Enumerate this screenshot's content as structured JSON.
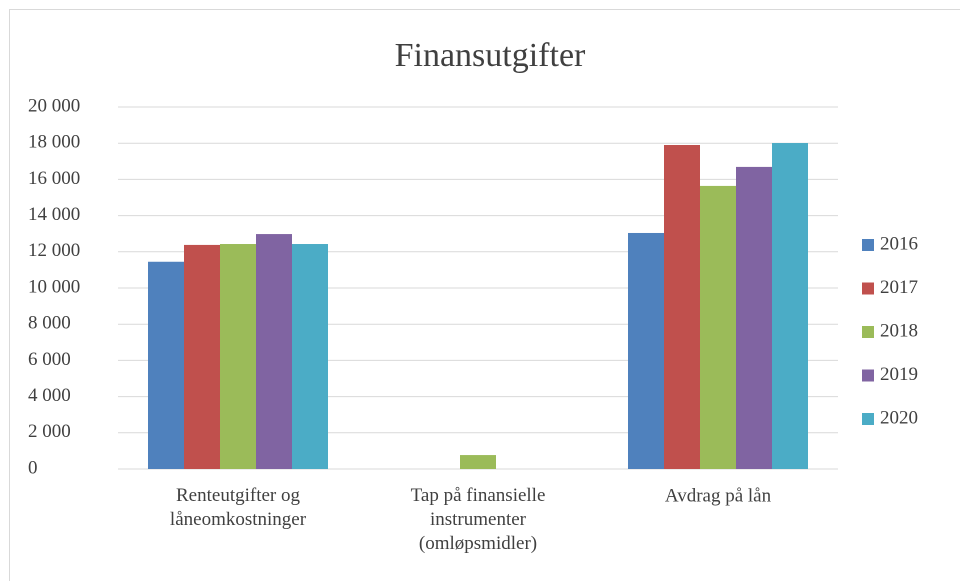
{
  "chart_data": {
    "type": "bar",
    "title": "Finansutgifter",
    "categories": [
      "Renteutgifter og\nlåneomkostninger",
      "Tap på finansielle\ninstrumenter\n(omløpsmidler)",
      "Avdrag på lån"
    ],
    "series": [
      {
        "name": "2016",
        "color": "#4f81bd",
        "values": [
          11450,
          0,
          13040
        ]
      },
      {
        "name": "2017",
        "color": "#c0504d",
        "values": [
          12380,
          0,
          17900
        ]
      },
      {
        "name": "2018",
        "color": "#9bbb59",
        "values": [
          12430,
          770,
          15640
        ]
      },
      {
        "name": "2019",
        "color": "#8064a2",
        "values": [
          12980,
          0,
          16690
        ]
      },
      {
        "name": "2020",
        "color": "#4bacc6",
        "values": [
          12430,
          0,
          18010
        ]
      }
    ],
    "ylim": [
      0,
      20000
    ],
    "yticks": [
      0,
      {
        "value": 2000,
        "label": "2 000"
      },
      {
        "value": 4000,
        "label": "4 000"
      },
      {
        "value": 6000,
        "label": "6 000"
      },
      {
        "value": 8000,
        "label": "8 000"
      },
      {
        "value": 10000,
        "label": "10 000"
      },
      {
        "value": 12000,
        "label": "12 000"
      },
      {
        "value": 14000,
        "label": "14 000"
      },
      {
        "value": 16000,
        "label": "16 000"
      },
      {
        "value": 18000,
        "label": "18 000"
      },
      {
        "value": 20000,
        "label": "20 000"
      }
    ],
    "grid": true,
    "legend": "right"
  }
}
